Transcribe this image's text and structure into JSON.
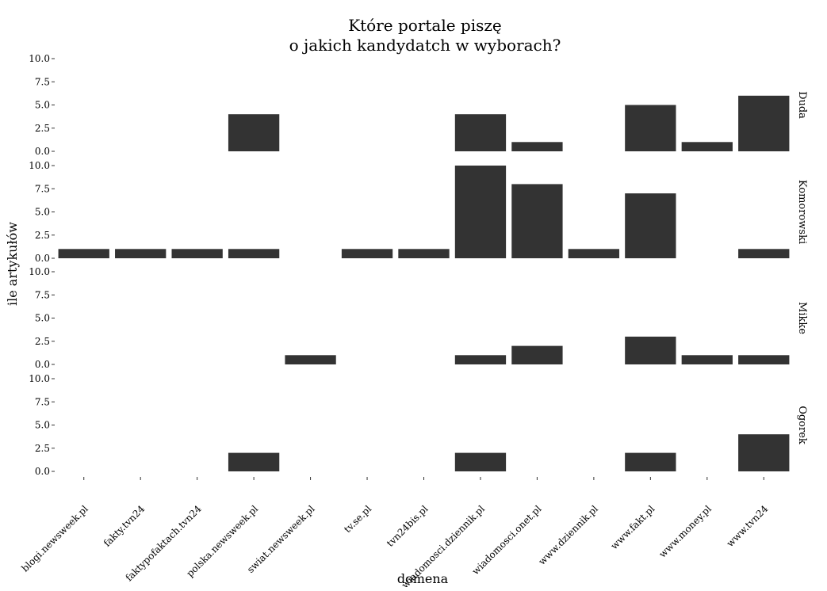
{
  "chart_data": {
    "type": "bar",
    "title_lines": [
      "Które portale piszę",
      "o jakich kandydatch w wyborach?"
    ],
    "xlabel": "domena",
    "ylabel": "ile artykułów",
    "ylim": [
      0,
      10
    ],
    "yticks": [
      "0.0",
      "2.5",
      "5.0",
      "7.5",
      "10.0"
    ],
    "categories": [
      "blogi.newsweek.pl",
      "fakty.tvn24",
      "faktypofaktach.tvn24",
      "polska.newsweek.pl",
      "swiat.newsweek.pl",
      "tv.se.pl",
      "tvn24bis.pl",
      "wiadomosci.dziennik.pl",
      "wiadomosci.onet.pl",
      "www.dziennik.pl",
      "www.fakt.pl",
      "www.money.pl",
      "www.tvn24"
    ],
    "panels": [
      {
        "name": "Duda",
        "values": [
          0,
          0,
          0,
          4,
          0,
          0,
          0,
          4,
          1,
          0,
          5,
          1,
          6
        ]
      },
      {
        "name": "Komorowski",
        "values": [
          1,
          1,
          1,
          1,
          0,
          1,
          1,
          10,
          8,
          1,
          7,
          0,
          1
        ]
      },
      {
        "name": "Mikke",
        "values": [
          0,
          0,
          0,
          0,
          1,
          0,
          0,
          1,
          2,
          0,
          3,
          1,
          1
        ]
      },
      {
        "name": "Ogorek",
        "values": [
          0,
          0,
          0,
          2,
          0,
          0,
          0,
          2,
          0,
          0,
          2,
          0,
          4
        ]
      }
    ],
    "bar_color": "#333333",
    "grid": false,
    "facet": "rows"
  }
}
